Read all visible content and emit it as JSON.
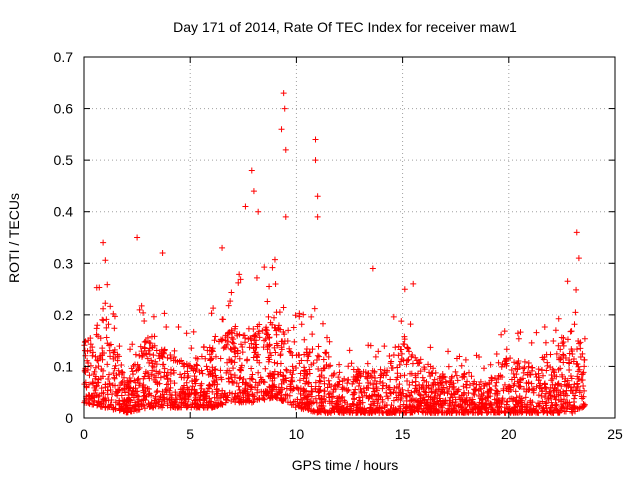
{
  "chart_data": {
    "type": "scatter",
    "title": "Day 171 of 2014, Rate Of TEC Index for receiver maw1",
    "xlabel": "GPS time / hours",
    "ylabel": "ROTI / TECUs",
    "xlim": [
      0,
      25
    ],
    "ylim": [
      0,
      0.7
    ],
    "x_ticks": [
      "0",
      "5",
      "10",
      "15",
      "20",
      "25"
    ],
    "y_ticks": [
      "0",
      "0.1",
      "0.2",
      "0.3",
      "0.4",
      "0.5",
      "0.6",
      "0.7"
    ],
    "grid": true,
    "marker": "+",
    "color": "#ff0000",
    "series": [
      {
        "name": "maw1",
        "notable_points": [
          {
            "x": 0.9,
            "y": 0.34
          },
          {
            "x": 2.5,
            "y": 0.35
          },
          {
            "x": 3.7,
            "y": 0.32
          },
          {
            "x": 6.5,
            "y": 0.33
          },
          {
            "x": 7.6,
            "y": 0.41
          },
          {
            "x": 7.9,
            "y": 0.48
          },
          {
            "x": 8.0,
            "y": 0.44
          },
          {
            "x": 8.2,
            "y": 0.4
          },
          {
            "x": 9.3,
            "y": 0.56
          },
          {
            "x": 9.4,
            "y": 0.63
          },
          {
            "x": 9.45,
            "y": 0.6
          },
          {
            "x": 9.5,
            "y": 0.52
          },
          {
            "x": 9.5,
            "y": 0.39
          },
          {
            "x": 10.9,
            "y": 0.54
          },
          {
            "x": 10.9,
            "y": 0.5
          },
          {
            "x": 11.0,
            "y": 0.43
          },
          {
            "x": 11.0,
            "y": 0.39
          },
          {
            "x": 13.6,
            "y": 0.29
          },
          {
            "x": 15.5,
            "y": 0.26
          },
          {
            "x": 23.2,
            "y": 0.36
          },
          {
            "x": 23.3,
            "y": 0.31
          }
        ],
        "envelope_hours": [
          0,
          1,
          2,
          3,
          4,
          5,
          6,
          7,
          8,
          9,
          10,
          11,
          12,
          13,
          14,
          15,
          16,
          17,
          18,
          19,
          20,
          21,
          22,
          23,
          23.6
        ],
        "envelope_upper": [
          0.24,
          0.33,
          0.12,
          0.28,
          0.2,
          0.17,
          0.22,
          0.28,
          0.3,
          0.33,
          0.2,
          0.23,
          0.17,
          0.15,
          0.16,
          0.26,
          0.18,
          0.13,
          0.15,
          0.1,
          0.2,
          0.17,
          0.22,
          0.3,
          0.27
        ],
        "envelope_lower": [
          0.03,
          0.02,
          0.01,
          0.02,
          0.02,
          0.02,
          0.02,
          0.03,
          0.03,
          0.04,
          0.02,
          0.01,
          0.01,
          0.01,
          0.01,
          0.01,
          0.01,
          0.01,
          0.01,
          0.01,
          0.01,
          0.01,
          0.01,
          0.01,
          0.02
        ]
      }
    ]
  }
}
